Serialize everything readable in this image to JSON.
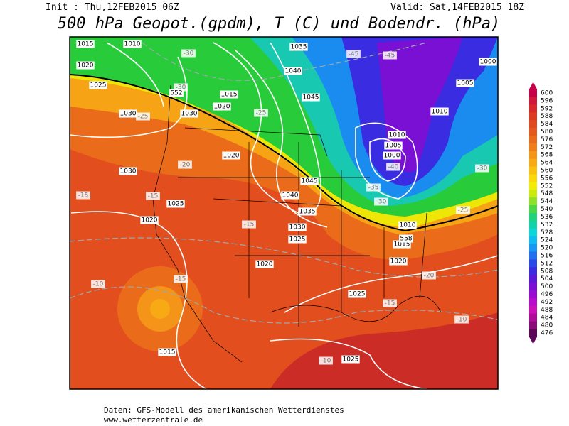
{
  "header": {
    "init": "Init : Thu,12FEB2015 06Z",
    "valid": "Valid: Sat,14FEB2015 18Z",
    "title": "500 hPa Geopot.(gpdm), T (C) und Bodendr. (hPa)"
  },
  "map": {
    "labels": [
      "1015",
      "1010",
      "1035",
      "1040",
      "1045",
      "1020",
      "1025",
      "1030",
      "1030",
      "1020",
      "1015",
      "1020",
      "1045",
      "1040",
      "1035",
      "1030",
      "1025",
      "1020",
      "1025",
      "1020",
      "1015",
      "1010",
      "1010",
      "1005",
      "1000",
      "1005",
      "1010",
      "1000",
      "1030",
      "1025",
      "1020",
      "1015",
      "1025",
      "-30",
      "-30",
      "-25",
      "-25",
      "-20",
      "-15",
      "-15",
      "-15",
      "-15",
      "-10",
      "-20",
      "-15",
      "-10",
      "-10",
      "-30",
      "-25",
      "-35",
      "-40",
      "-30",
      "-45",
      "-45",
      "552",
      "558"
    ]
  },
  "colorbar": {
    "labels": [
      600,
      596,
      592,
      588,
      584,
      580,
      576,
      572,
      568,
      564,
      560,
      556,
      552,
      548,
      544,
      540,
      536,
      532,
      528,
      524,
      520,
      516,
      512,
      508,
      504,
      500,
      496,
      492,
      488,
      484,
      480,
      476
    ],
    "colors": [
      "#c8004a",
      "#d01838",
      "#d8282c",
      "#dc3a22",
      "#e04a1e",
      "#e45a1c",
      "#ea6c1a",
      "#f07e18",
      "#f49418",
      "#f8aa14",
      "#fac010",
      "#fad80a",
      "#f2ec04",
      "#c8ec10",
      "#8ee028",
      "#4cd648",
      "#22d27a",
      "#12d2a8",
      "#0cd6d6",
      "#10bcf0",
      "#1898f4",
      "#2070f0",
      "#2a4ae8",
      "#3a2ce0",
      "#5a1ad8",
      "#7a10d4",
      "#9a0cd0",
      "#b80ccc",
      "#cc10b8",
      "#b00c9a",
      "#8a0a7a",
      "#5c0858"
    ]
  },
  "footer": {
    "line1": "Daten: GFS-Modell des amerikanischen Wetterdienstes",
    "line2": "www.wetterzentrale.de"
  }
}
